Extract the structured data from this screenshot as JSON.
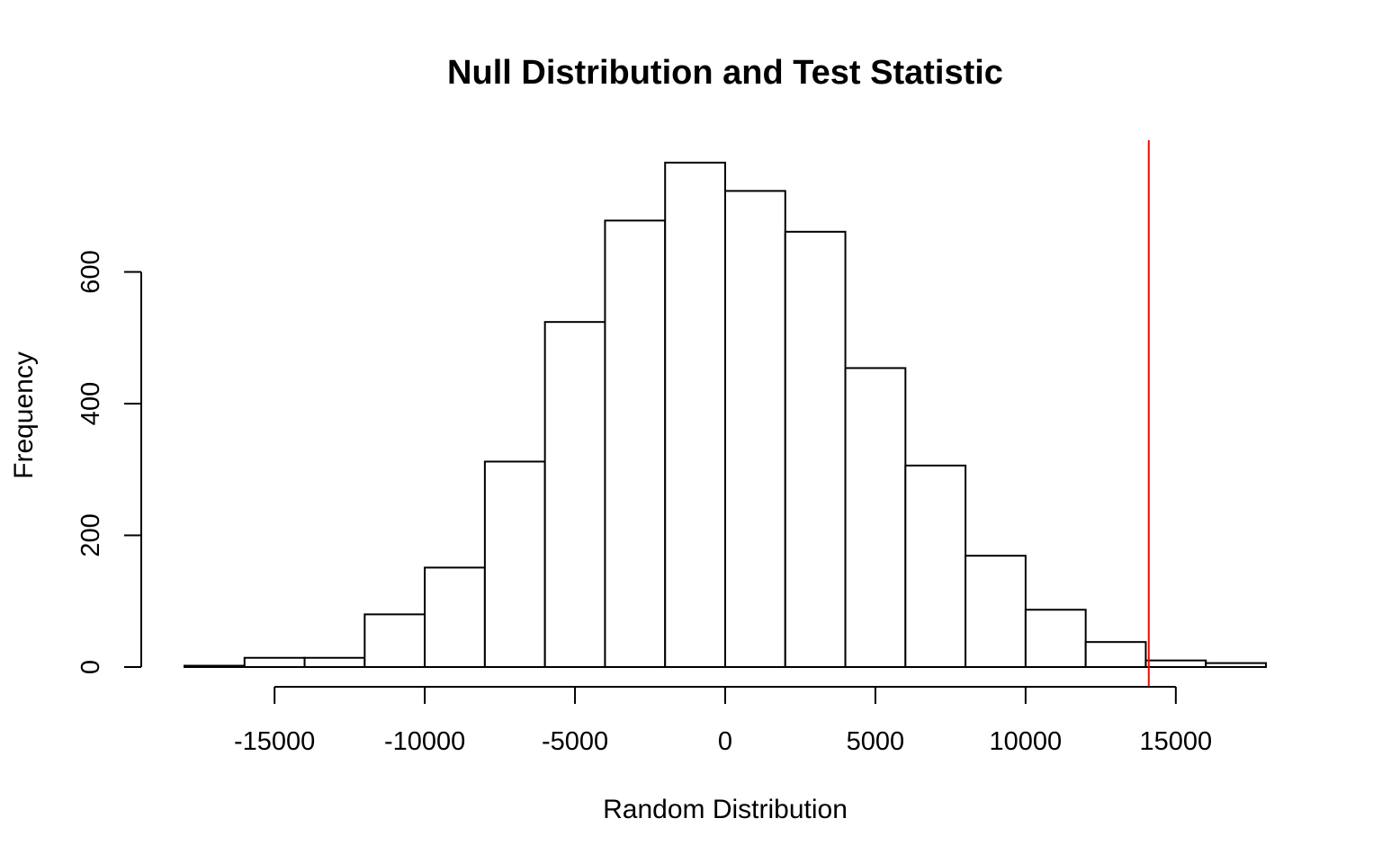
{
  "chart_data": {
    "type": "bar",
    "title": "Null Distribution and Test Statistic",
    "xlabel": "Random Distribution",
    "ylabel": "Frequency",
    "bins": [
      {
        "x0": -18000,
        "x1": -16000,
        "count": 2
      },
      {
        "x0": -16000,
        "x1": -14000,
        "count": 14
      },
      {
        "x0": -14000,
        "x1": -12000,
        "count": 14
      },
      {
        "x0": -12000,
        "x1": -10000,
        "count": 80
      },
      {
        "x0": -10000,
        "x1": -8000,
        "count": 151
      },
      {
        "x0": -8000,
        "x1": -6000,
        "count": 312
      },
      {
        "x0": -6000,
        "x1": -4000,
        "count": 524
      },
      {
        "x0": -4000,
        "x1": -2000,
        "count": 678
      },
      {
        "x0": -2000,
        "x1": 0,
        "count": 766
      },
      {
        "x0": 0,
        "x1": 2000,
        "count": 723
      },
      {
        "x0": 2000,
        "x1": 4000,
        "count": 661
      },
      {
        "x0": 4000,
        "x1": 6000,
        "count": 454
      },
      {
        "x0": 6000,
        "x1": 8000,
        "count": 306
      },
      {
        "x0": 8000,
        "x1": 10000,
        "count": 169
      },
      {
        "x0": 10000,
        "x1": 12000,
        "count": 87
      },
      {
        "x0": 12000,
        "x1": 14000,
        "count": 38
      },
      {
        "x0": 14000,
        "x1": 16000,
        "count": 10
      },
      {
        "x0": 16000,
        "x1": 18000,
        "count": 6
      }
    ],
    "xticks": [
      -15000,
      -10000,
      -5000,
      0,
      5000,
      10000,
      15000
    ],
    "xtick_labels": [
      "-15000",
      "-10000",
      "-5000",
      "0",
      "5000",
      "10000",
      "15000"
    ],
    "yticks": [
      0,
      200,
      400,
      600
    ],
    "ytick_labels": [
      "0",
      "200",
      "400",
      "600"
    ],
    "xlim": [
      -18000,
      18000
    ],
    "ylim": [
      0,
      800
    ],
    "test_statistic": 14100,
    "test_statistic_color": "#ff0000",
    "bar_fill": "#ffffff",
    "bar_stroke": "#000000",
    "grid": false,
    "legend": "none"
  }
}
